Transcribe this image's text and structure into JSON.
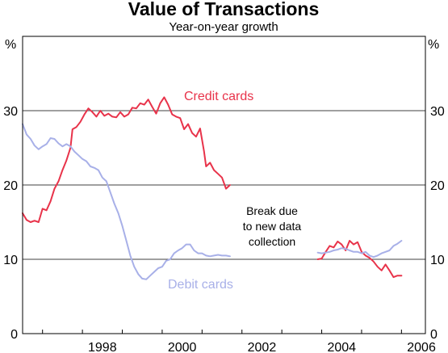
{
  "chart_data": {
    "type": "line",
    "title": "Value of Transactions",
    "subtitle": "Year-on-year growth",
    "ylabel_left": "%",
    "ylabel_right": "%",
    "ylim": [
      0,
      40
    ],
    "yticks": [
      0,
      10,
      20,
      30
    ],
    "xlim": [
      1996.5,
      2006.6
    ],
    "xticks": [
      1998,
      2000,
      2002,
      2004,
      2006
    ],
    "grid": "horizontal",
    "annotation": [
      "Break due",
      "to new data",
      "collection"
    ],
    "series": [
      {
        "name": "Credit cards",
        "color": "#e8334a",
        "segments": [
          [
            [
              1996.5,
              16.2
            ],
            [
              1996.6,
              15.3
            ],
            [
              1996.7,
              15.0
            ],
            [
              1996.8,
              15.2
            ],
            [
              1996.9,
              15.0
            ],
            [
              1997.0,
              16.8
            ],
            [
              1997.1,
              16.6
            ],
            [
              1997.2,
              17.8
            ],
            [
              1997.3,
              19.5
            ],
            [
              1997.4,
              20.5
            ],
            [
              1997.5,
              22.0
            ],
            [
              1997.6,
              23.3
            ],
            [
              1997.7,
              25.0
            ],
            [
              1997.75,
              27.5
            ],
            [
              1997.85,
              27.8
            ],
            [
              1997.95,
              28.5
            ],
            [
              1998.05,
              29.5
            ],
            [
              1998.15,
              30.3
            ],
            [
              1998.25,
              29.8
            ],
            [
              1998.35,
              29.2
            ],
            [
              1998.45,
              30.0
            ],
            [
              1998.55,
              29.3
            ],
            [
              1998.65,
              29.6
            ],
            [
              1998.75,
              29.2
            ],
            [
              1998.85,
              29.1
            ],
            [
              1998.95,
              29.8
            ],
            [
              1999.05,
              29.2
            ],
            [
              1999.15,
              29.5
            ],
            [
              1999.25,
              30.4
            ],
            [
              1999.35,
              30.3
            ],
            [
              1999.45,
              31.0
            ],
            [
              1999.55,
              30.8
            ],
            [
              1999.65,
              31.5
            ],
            [
              1999.75,
              30.5
            ],
            [
              1999.85,
              29.6
            ],
            [
              1999.95,
              31.0
            ],
            [
              2000.05,
              31.8
            ],
            [
              2000.15,
              30.8
            ],
            [
              2000.25,
              29.5
            ],
            [
              2000.35,
              29.2
            ],
            [
              2000.45,
              29.0
            ],
            [
              2000.55,
              27.5
            ],
            [
              2000.65,
              28.2
            ],
            [
              2000.75,
              27.0
            ],
            [
              2000.85,
              26.5
            ],
            [
              2000.95,
              27.6
            ],
            [
              2001.05,
              24.5
            ],
            [
              2001.1,
              22.5
            ],
            [
              2001.2,
              23.0
            ],
            [
              2001.3,
              22.0
            ],
            [
              2001.4,
              21.5
            ],
            [
              2001.5,
              21.0
            ],
            [
              2001.6,
              19.5
            ],
            [
              2001.7,
              20.0
            ]
          ],
          [
            [
              2003.9,
              10.0
            ],
            [
              2004.0,
              10.1
            ],
            [
              2004.1,
              11.0
            ],
            [
              2004.2,
              11.8
            ],
            [
              2004.3,
              11.6
            ],
            [
              2004.4,
              12.4
            ],
            [
              2004.5,
              12.0
            ],
            [
              2004.6,
              11.2
            ],
            [
              2004.7,
              12.5
            ],
            [
              2004.8,
              12.0
            ],
            [
              2004.9,
              12.3
            ],
            [
              2005.0,
              11.0
            ],
            [
              2005.1,
              10.5
            ],
            [
              2005.2,
              10.2
            ],
            [
              2005.3,
              9.7
            ],
            [
              2005.4,
              9.0
            ],
            [
              2005.5,
              8.5
            ],
            [
              2005.6,
              9.3
            ],
            [
              2005.7,
              8.5
            ],
            [
              2005.8,
              7.6
            ],
            [
              2005.9,
              7.8
            ],
            [
              2006.0,
              7.8
            ]
          ]
        ]
      },
      {
        "name": "Debit cards",
        "color": "#a8b0e8",
        "segments": [
          [
            [
              1996.5,
              28.2
            ],
            [
              1996.6,
              26.8
            ],
            [
              1996.7,
              26.2
            ],
            [
              1996.8,
              25.3
            ],
            [
              1996.9,
              24.8
            ],
            [
              1997.0,
              25.2
            ],
            [
              1997.1,
              25.5
            ],
            [
              1997.2,
              26.3
            ],
            [
              1997.3,
              26.2
            ],
            [
              1997.4,
              25.6
            ],
            [
              1997.5,
              25.2
            ],
            [
              1997.6,
              25.5
            ],
            [
              1997.7,
              25.2
            ],
            [
              1997.8,
              24.5
            ],
            [
              1997.9,
              24.0
            ],
            [
              1998.0,
              23.5
            ],
            [
              1998.1,
              23.2
            ],
            [
              1998.2,
              22.5
            ],
            [
              1998.3,
              22.3
            ],
            [
              1998.4,
              22.0
            ],
            [
              1998.5,
              21.0
            ],
            [
              1998.6,
              20.5
            ],
            [
              1998.7,
              19.0
            ],
            [
              1998.8,
              17.5
            ],
            [
              1998.9,
              16.2
            ],
            [
              1999.0,
              14.5
            ],
            [
              1999.1,
              12.5
            ],
            [
              1999.2,
              10.5
            ],
            [
              1999.3,
              9.0
            ],
            [
              1999.4,
              8.0
            ],
            [
              1999.5,
              7.4
            ],
            [
              1999.6,
              7.3
            ],
            [
              1999.7,
              7.8
            ],
            [
              1999.8,
              8.3
            ],
            [
              1999.9,
              8.8
            ],
            [
              2000.0,
              9.0
            ],
            [
              2000.1,
              9.8
            ],
            [
              2000.2,
              10.0
            ],
            [
              2000.3,
              10.8
            ],
            [
              2000.4,
              11.2
            ],
            [
              2000.5,
              11.5
            ],
            [
              2000.6,
              12.0
            ],
            [
              2000.7,
              12.0
            ],
            [
              2000.8,
              11.2
            ],
            [
              2000.9,
              10.8
            ],
            [
              2001.0,
              10.8
            ],
            [
              2001.1,
              10.5
            ],
            [
              2001.2,
              10.4
            ],
            [
              2001.3,
              10.5
            ],
            [
              2001.4,
              10.6
            ],
            [
              2001.5,
              10.5
            ],
            [
              2001.6,
              10.5
            ],
            [
              2001.7,
              10.4
            ]
          ],
          [
            [
              2003.9,
              10.9
            ],
            [
              2004.0,
              10.8
            ],
            [
              2004.1,
              10.9
            ],
            [
              2004.2,
              11.0
            ],
            [
              2004.3,
              11.2
            ],
            [
              2004.4,
              11.3
            ],
            [
              2004.5,
              11.5
            ],
            [
              2004.6,
              11.4
            ],
            [
              2004.7,
              11.2
            ],
            [
              2004.8,
              11.0
            ],
            [
              2004.9,
              11.0
            ],
            [
              2005.0,
              10.8
            ],
            [
              2005.1,
              11.0
            ],
            [
              2005.2,
              10.5
            ],
            [
              2005.3,
              10.3
            ],
            [
              2005.4,
              10.5
            ],
            [
              2005.5,
              10.8
            ],
            [
              2005.6,
              11.0
            ],
            [
              2005.7,
              11.2
            ],
            [
              2005.8,
              11.8
            ],
            [
              2005.9,
              12.1
            ],
            [
              2006.0,
              12.5
            ]
          ]
        ]
      }
    ]
  }
}
